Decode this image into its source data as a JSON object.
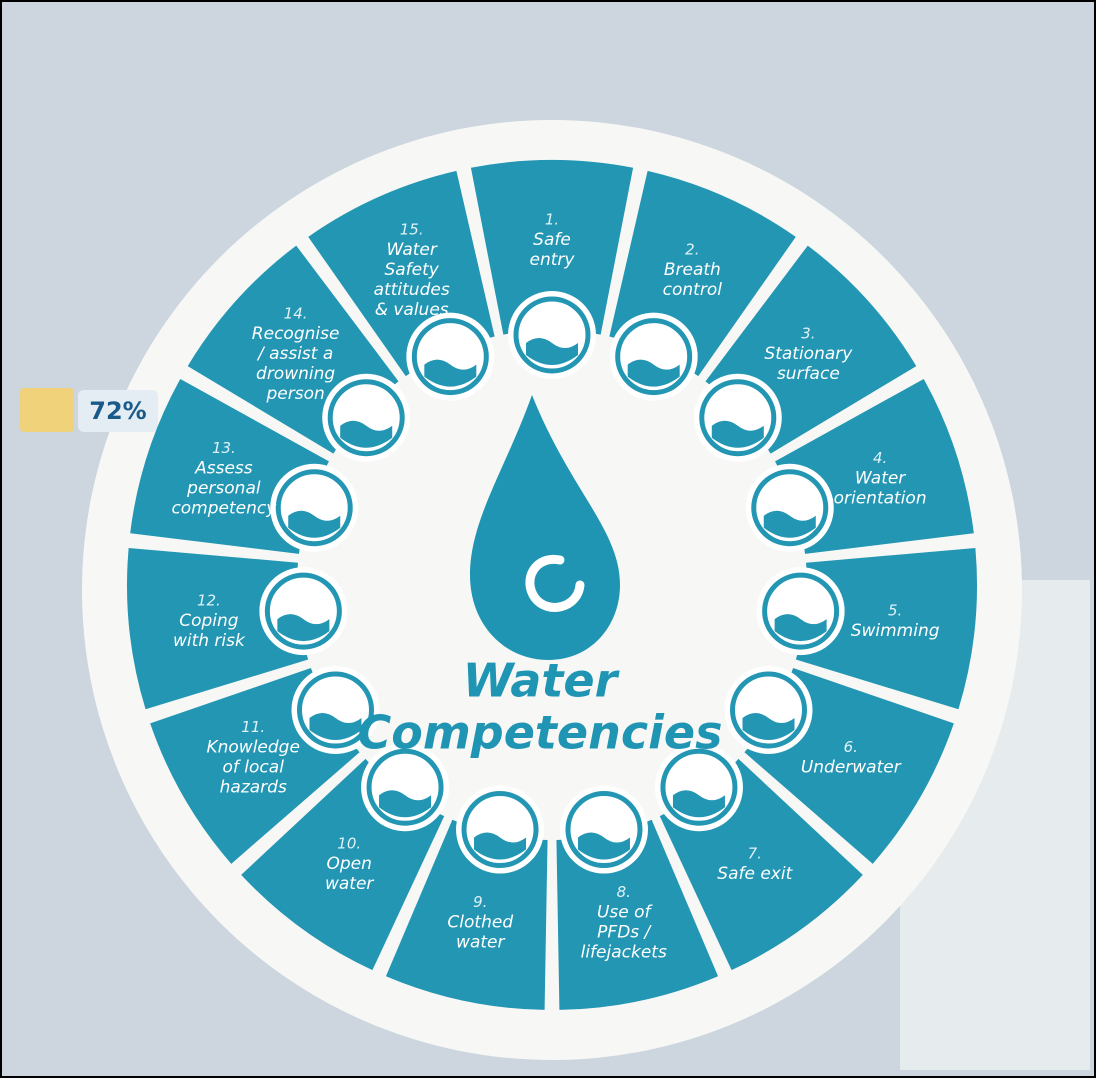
{
  "title_lines": [
    "Water",
    "Competencies"
  ],
  "side_label": "72%",
  "segments": [
    {
      "number": "1.",
      "label_lines": [
        "Safe",
        "entry"
      ]
    },
    {
      "number": "2.",
      "label_lines": [
        "Breath",
        "control"
      ]
    },
    {
      "number": "3.",
      "label_lines": [
        "Stationary",
        "surface"
      ]
    },
    {
      "number": "4.",
      "label_lines": [
        "Water",
        "orientation"
      ]
    },
    {
      "number": "5.",
      "label_lines": [
        "Swimming"
      ]
    },
    {
      "number": "6.",
      "label_lines": [
        "Underwater"
      ]
    },
    {
      "number": "7.",
      "label_lines": [
        "Safe exit"
      ]
    },
    {
      "number": "8.",
      "label_lines": [
        "Use of",
        "PFDs /",
        "lifejackets"
      ]
    },
    {
      "number": "9.",
      "label_lines": [
        "Clothed",
        "water"
      ]
    },
    {
      "number": "10.",
      "label_lines": [
        "Open",
        "water"
      ]
    },
    {
      "number": "11.",
      "label_lines": [
        "Knowledge",
        "of local",
        "hazards"
      ]
    },
    {
      "number": "12.",
      "label_lines": [
        "Coping",
        "with risk"
      ]
    },
    {
      "number": "13.",
      "label_lines": [
        "Assess",
        "personal",
        "competency"
      ]
    },
    {
      "number": "14.",
      "label_lines": [
        "Recognise",
        "/ assist a",
        "drowning",
        "person"
      ]
    },
    {
      "number": "15.",
      "label_lines": [
        "Water",
        "Safety",
        "attitudes",
        "& values"
      ]
    }
  ]
}
